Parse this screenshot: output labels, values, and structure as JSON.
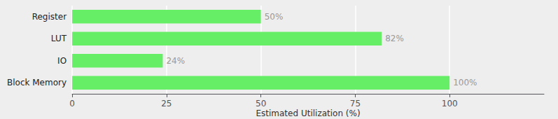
{
  "chart_data": {
    "type": "bar",
    "orientation": "horizontal",
    "categories": [
      "Block Memory",
      "IO",
      "LUT",
      "Register"
    ],
    "values": [
      100,
      24,
      82,
      50
    ],
    "value_labels": [
      "100%",
      "24%",
      "82%",
      "50%"
    ],
    "data_labels": true,
    "color": "#66ee66",
    "xlabel": "Estimated Utilization (%)",
    "xlim": [
      0,
      125
    ],
    "xticks": [
      0,
      25,
      50,
      75,
      100
    ],
    "grid": true
  }
}
